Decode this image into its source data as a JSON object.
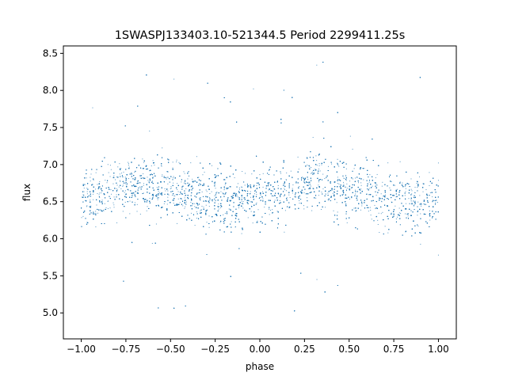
{
  "chart_data": {
    "type": "scatter",
    "title": "1SWASPJ133403.10-521344.5 Period 2299411.25s",
    "xlabel": "phase",
    "ylabel": "flux",
    "xlim": [
      -1.1,
      1.1
    ],
    "ylim": [
      4.65,
      8.6
    ],
    "x_ticks": [
      "−1.00",
      "−0.75",
      "−0.50",
      "−0.25",
      "0.00",
      "0.25",
      "0.50",
      "0.75",
      "1.00"
    ],
    "x_tick_values": [
      -1.0,
      -0.75,
      -0.5,
      -0.25,
      0.0,
      0.25,
      0.5,
      0.75,
      1.0
    ],
    "y_ticks": [
      "5.0",
      "5.5",
      "6.0",
      "6.5",
      "7.0",
      "7.5",
      "8.0",
      "8.5"
    ],
    "y_tick_values": [
      5.0,
      5.5,
      6.0,
      6.5,
      7.0,
      7.5,
      8.0,
      8.5
    ],
    "grid": false,
    "marker_color": "#1f77b4",
    "series": [
      {
        "phase_range": [
          -1.0,
          1.0
        ],
        "flux_bins": [
          {
            "x": -1.0,
            "median": 6.55
          },
          {
            "x": -0.9,
            "median": 6.62
          },
          {
            "x": -0.8,
            "median": 6.7
          },
          {
            "x": -0.7,
            "median": 6.75
          },
          {
            "x": -0.6,
            "median": 6.72
          },
          {
            "x": -0.5,
            "median": 6.68
          },
          {
            "x": -0.4,
            "median": 6.62
          },
          {
            "x": -0.3,
            "median": 6.55
          },
          {
            "x": -0.2,
            "median": 6.5
          },
          {
            "x": -0.1,
            "median": 6.5
          },
          {
            "x": 0.0,
            "median": 6.55
          },
          {
            "x": 0.1,
            "median": 6.62
          },
          {
            "x": 0.2,
            "median": 6.7
          },
          {
            "x": 0.3,
            "median": 6.75
          },
          {
            "x": 0.4,
            "median": 6.72
          },
          {
            "x": 0.5,
            "median": 6.68
          },
          {
            "x": 0.6,
            "median": 6.62
          },
          {
            "x": 0.7,
            "median": 6.55
          },
          {
            "x": 0.8,
            "median": 6.5
          },
          {
            "x": 0.9,
            "median": 6.5
          },
          {
            "x": 1.0,
            "median": 6.55
          }
        ]
      }
    ]
  }
}
